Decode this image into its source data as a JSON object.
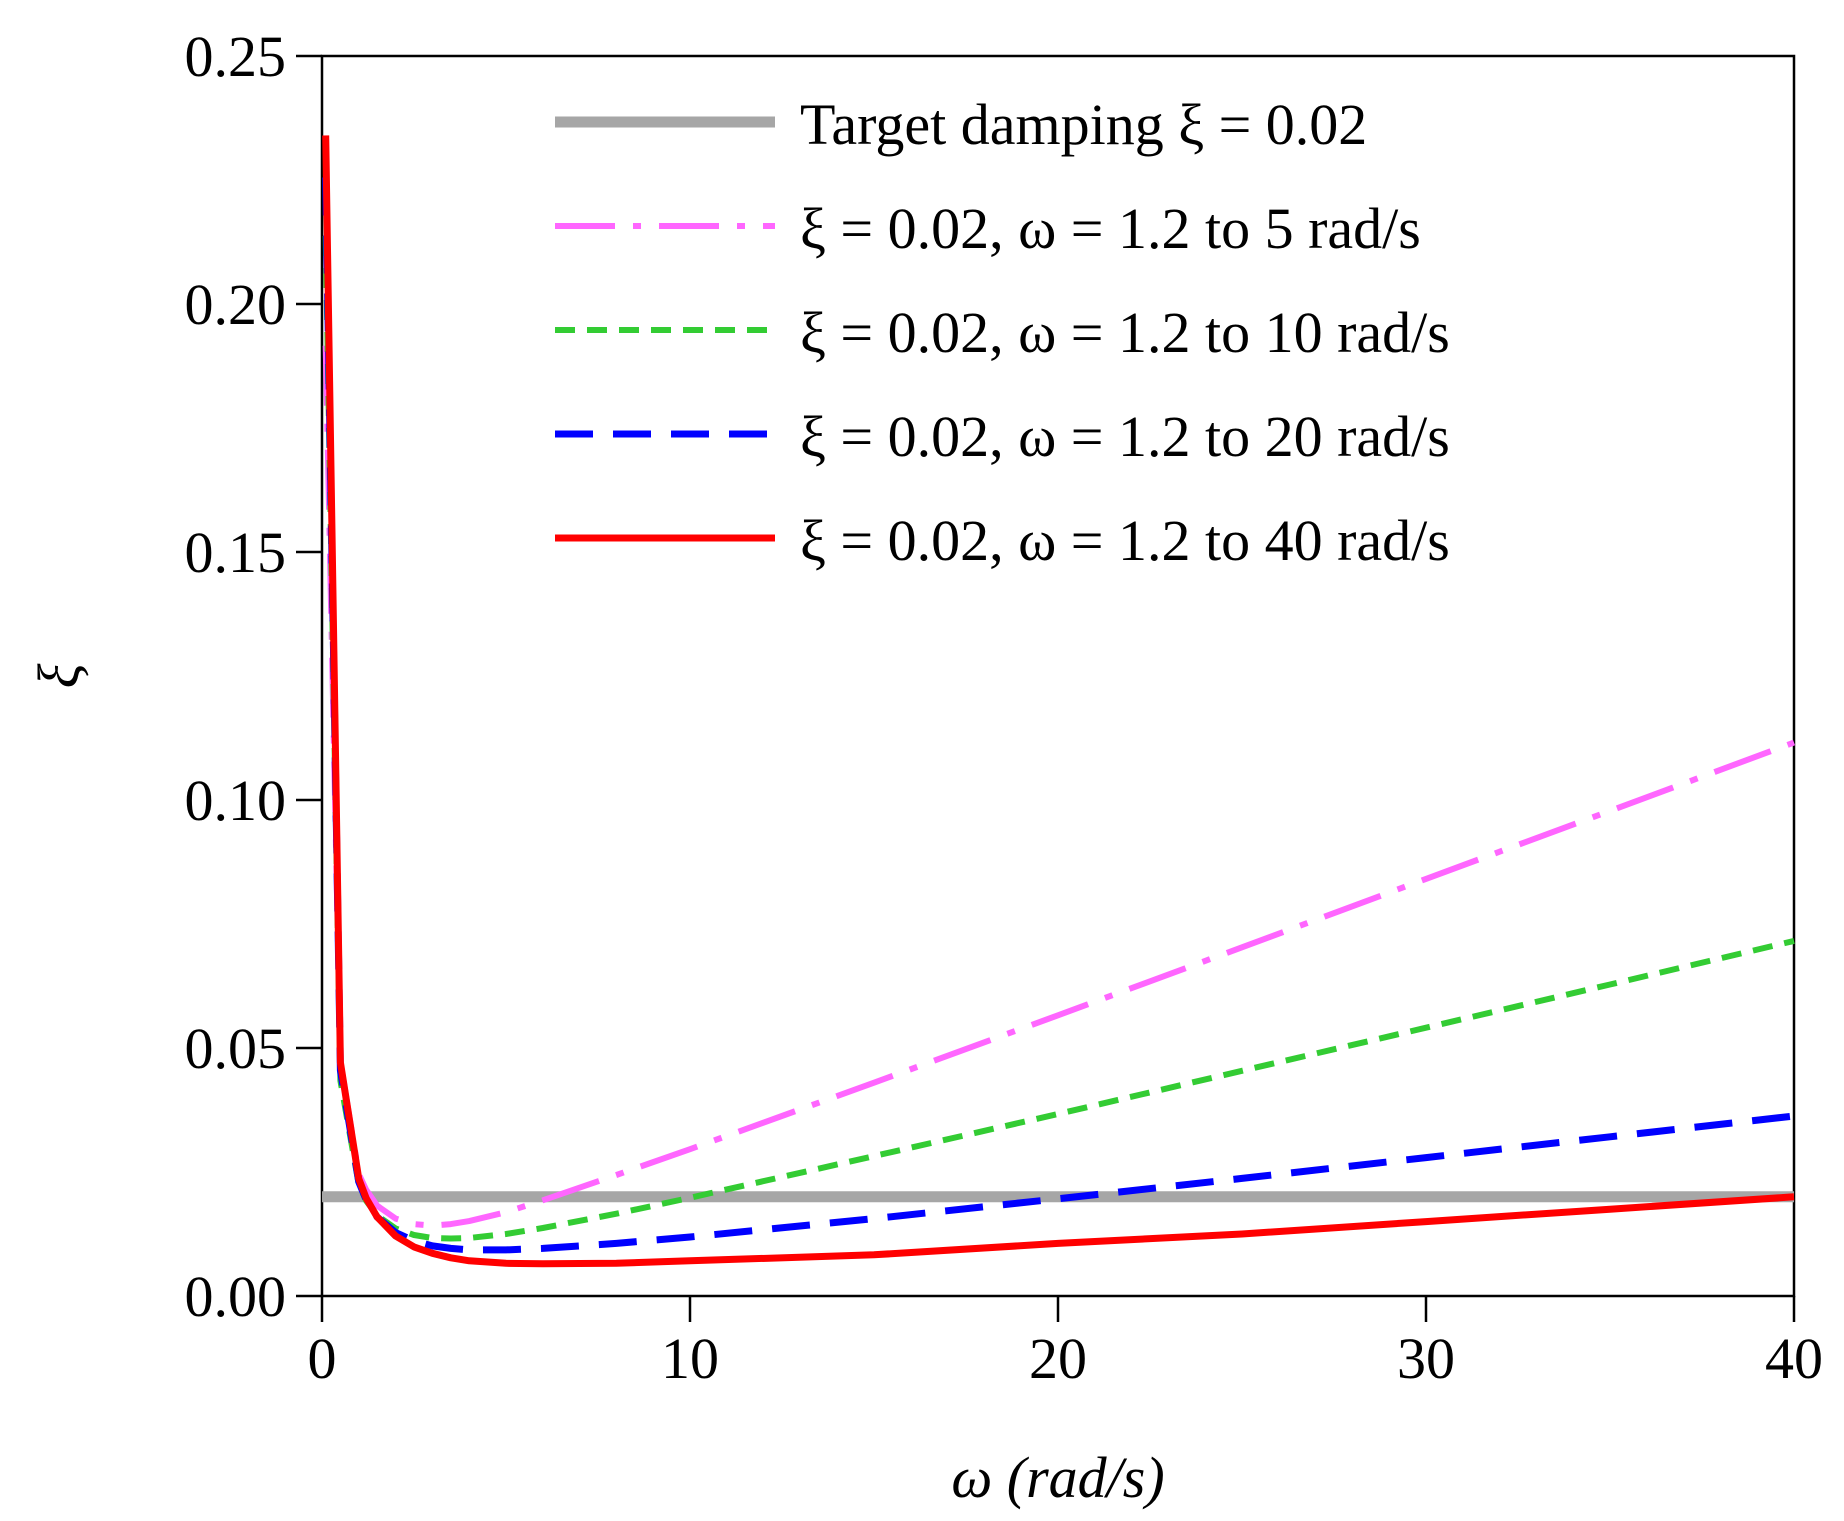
{
  "chart_data": {
    "type": "line",
    "title": "",
    "xlabel": "ω (rad/s)",
    "ylabel": "ξ",
    "xlim": [
      0,
      40
    ],
    "ylim": [
      0,
      0.25
    ],
    "xticks": [
      "0",
      "10",
      "20",
      "30",
      "40"
    ],
    "yticks": [
      "0.00",
      "0.05",
      "0.10",
      "0.15",
      "0.20",
      "0.25"
    ],
    "legend_position": "top-right",
    "series": [
      {
        "name": "Target damping ξ = 0.02",
        "color": "#a6a6a6",
        "style": "solid",
        "x": [
          0,
          40
        ],
        "y": [
          0.02,
          0.02
        ]
      },
      {
        "name": "ξ = 0.02, ω = 1.2 to 5 rad/s",
        "color": "#ff66ff",
        "style": "dashdot",
        "x": [
          0.1,
          0.5,
          1.0,
          1.2,
          1.5,
          2.0,
          2.5,
          3.0,
          3.5,
          4.0,
          5.0,
          6.0,
          8.0,
          10.0,
          15.0,
          20.0,
          25.0,
          30.0,
          35.0,
          40.0
        ],
        "y": [
          0.1916,
          0.0473,
          0.0246,
          0.0214,
          0.0182,
          0.0156,
          0.0145,
          0.0142,
          0.0145,
          0.0151,
          0.0169,
          0.0193,
          0.0244,
          0.0296,
          0.043,
          0.0566,
          0.0703,
          0.0841,
          0.0978,
          0.1116
        ]
      },
      {
        "name": "ξ = 0.02, ω = 1.2 to 10 rad/s",
        "color": "#33cc33",
        "style": "dash",
        "x": [
          0.1,
          0.5,
          1.0,
          1.2,
          1.5,
          2.0,
          2.5,
          3.0,
          3.5,
          4.0,
          5.0,
          6.0,
          8.0,
          10.0,
          15.0,
          20.0,
          25.0,
          30.0,
          35.0,
          40.0
        ],
        "y": [
          0.2137,
          0.0434,
          0.0224,
          0.0192,
          0.0162,
          0.0136,
          0.0123,
          0.0117,
          0.0116,
          0.0117,
          0.0125,
          0.0137,
          0.0166,
          0.0198,
          0.0282,
          0.0367,
          0.0454,
          0.0541,
          0.0628,
          0.0716
        ]
      },
      {
        "name": "ξ = 0.02, ω = 1.2 to 20 rad/s",
        "color": "#0000ff",
        "style": "longdash",
        "x": [
          0.1,
          0.5,
          1.0,
          1.2,
          1.5,
          2.0,
          2.5,
          3.0,
          3.5,
          4.0,
          5.0,
          6.0,
          8.0,
          10.0,
          15.0,
          20.0,
          25.0,
          30.0,
          35.0,
          40.0
        ],
        "y": [
          0.2255,
          0.0455,
          0.023,
          0.0194,
          0.0159,
          0.0128,
          0.0111,
          0.0101,
          0.0096,
          0.0093,
          0.0093,
          0.0096,
          0.0106,
          0.0119,
          0.0156,
          0.0196,
          0.0237,
          0.0279,
          0.0321,
          0.0363
        ]
      },
      {
        "name": "ξ = 0.02, ω = 1.2 to 40 rad/s",
        "color": "#ff0000",
        "style": "solid",
        "x": [
          0.1,
          0.5,
          1.0,
          1.2,
          1.5,
          2.0,
          2.5,
          3.0,
          3.5,
          4.0,
          5.0,
          6.0,
          8.0,
          10.0,
          15.0,
          20.0,
          25.0,
          30.0,
          35.0,
          40.0
        ],
        "y": [
          0.234,
          0.0471,
          0.0236,
          0.0197,
          0.0159,
          0.0121,
          0.0099,
          0.0086,
          0.0077,
          0.0071,
          0.0066,
          0.0065,
          0.0066,
          0.0071,
          0.0083,
          0.0106,
          0.0125,
          0.015,
          0.0175,
          0.02
        ]
      }
    ]
  }
}
